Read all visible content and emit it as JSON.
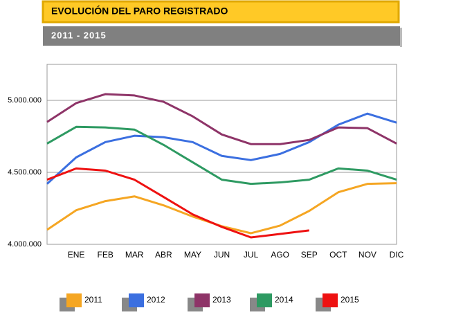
{
  "chart_data": {
    "type": "line",
    "title": "EVOLUCIÓN DEL PARO REGISTRADO",
    "subtitle": "2011 - 2015",
    "categories": [
      null,
      "ENE",
      "FEB",
      "MAR",
      "ABR",
      "MAY",
      "JUN",
      "JUL",
      "AGO",
      "SEP",
      "OCT",
      "NOV",
      "DIC"
    ],
    "ylim": [
      4000000,
      5250000
    ],
    "yticks": [
      {
        "value": 4000000,
        "label": "4.000.000"
      },
      {
        "value": 4500000,
        "label": "4.500.000"
      },
      {
        "value": 5000000,
        "label": "5.000.000"
      }
    ],
    "grid": true,
    "series": [
      {
        "name": "2011",
        "color": "#f5a623",
        "values": [
          4101000,
          4237000,
          4300000,
          4333000,
          4271000,
          4193000,
          4126000,
          4077000,
          4130000,
          4232000,
          4362000,
          4420000,
          4425000
        ]
      },
      {
        "name": "2012",
        "color": "#3b6fe0",
        "values": [
          4420000,
          4604000,
          4710000,
          4754000,
          4744000,
          4710000,
          4614000,
          4585000,
          4628000,
          4710000,
          4831000,
          4908000,
          4845000
        ]
      },
      {
        "name": "2013",
        "color": "#8e3468",
        "values": [
          4850000,
          4981000,
          5043000,
          5034000,
          4990000,
          4889000,
          4763000,
          4696000,
          4696000,
          4725000,
          4812000,
          4807000,
          4700000
        ]
      },
      {
        "name": "2014",
        "color": "#2e9a62",
        "values": [
          4700000,
          4816000,
          4812000,
          4797000,
          4691000,
          4570000,
          4449000,
          4420000,
          4430000,
          4449000,
          4527000,
          4512000,
          4449000
        ]
      },
      {
        "name": "2015",
        "color": "#ee1111",
        "values": [
          4449000,
          4527000,
          4512000,
          4449000,
          4329000,
          4208000,
          4121000,
          4048000,
          4072000,
          4097000,
          null,
          null,
          null
        ]
      }
    ]
  }
}
